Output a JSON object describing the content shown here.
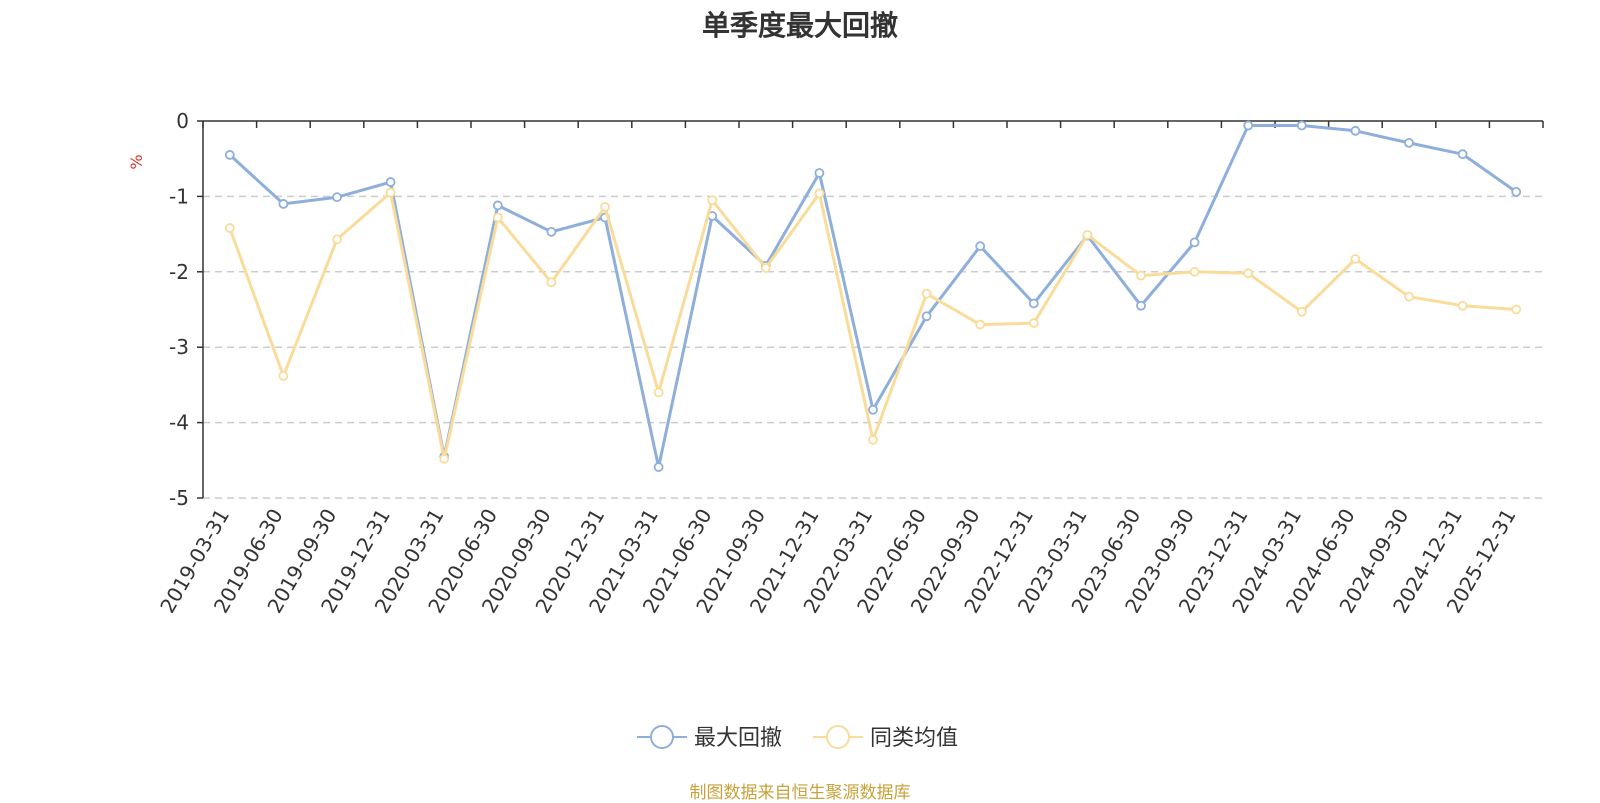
{
  "chart_data": {
    "type": "line",
    "title": "单季度最大回撤",
    "ylabel": "%",
    "ylim": [
      -5,
      0
    ],
    "yticks": [
      0,
      -1,
      -2,
      -3,
      -4,
      -5
    ],
    "grid": true,
    "legend_position": "bottom",
    "categories": [
      "2019-03-31",
      "2019-06-30",
      "2019-09-30",
      "2019-12-31",
      "2020-03-31",
      "2020-06-30",
      "2020-09-30",
      "2020-12-31",
      "2021-03-31",
      "2021-06-30",
      "2021-09-30",
      "2021-12-31",
      "2022-03-31",
      "2022-06-30",
      "2022-09-30",
      "2022-12-31",
      "2023-03-31",
      "2023-06-30",
      "2023-09-30",
      "2023-12-31",
      "2024-03-31",
      "2024-06-30",
      "2024-09-30",
      "2024-12-31",
      "2025-12-31"
    ],
    "series": [
      {
        "name": "最大回撤",
        "color": "#8eaedb",
        "values": [
          -0.45,
          -1.1,
          -1.01,
          -0.81,
          -4.45,
          -1.12,
          -1.47,
          -1.28,
          -4.59,
          -1.26,
          -1.92,
          -0.69,
          -3.83,
          -2.59,
          -1.66,
          -2.42,
          -1.52,
          -2.45,
          -1.61,
          -0.06,
          -0.06,
          -0.13,
          -0.29,
          -0.44,
          -0.94
        ]
      },
      {
        "name": "同类均值",
        "color": "#fadc9a",
        "values": [
          -1.42,
          -3.38,
          -1.57,
          -0.95,
          -4.48,
          -1.28,
          -2.14,
          -1.14,
          -3.6,
          -1.05,
          -1.95,
          -0.96,
          -4.23,
          -2.29,
          -2.7,
          -2.68,
          -1.51,
          -2.05,
          -2.0,
          -2.02,
          -2.53,
          -1.83,
          -2.33,
          -2.45,
          -2.5
        ]
      }
    ]
  },
  "source_note": "制图数据来自恒生聚源数据库"
}
